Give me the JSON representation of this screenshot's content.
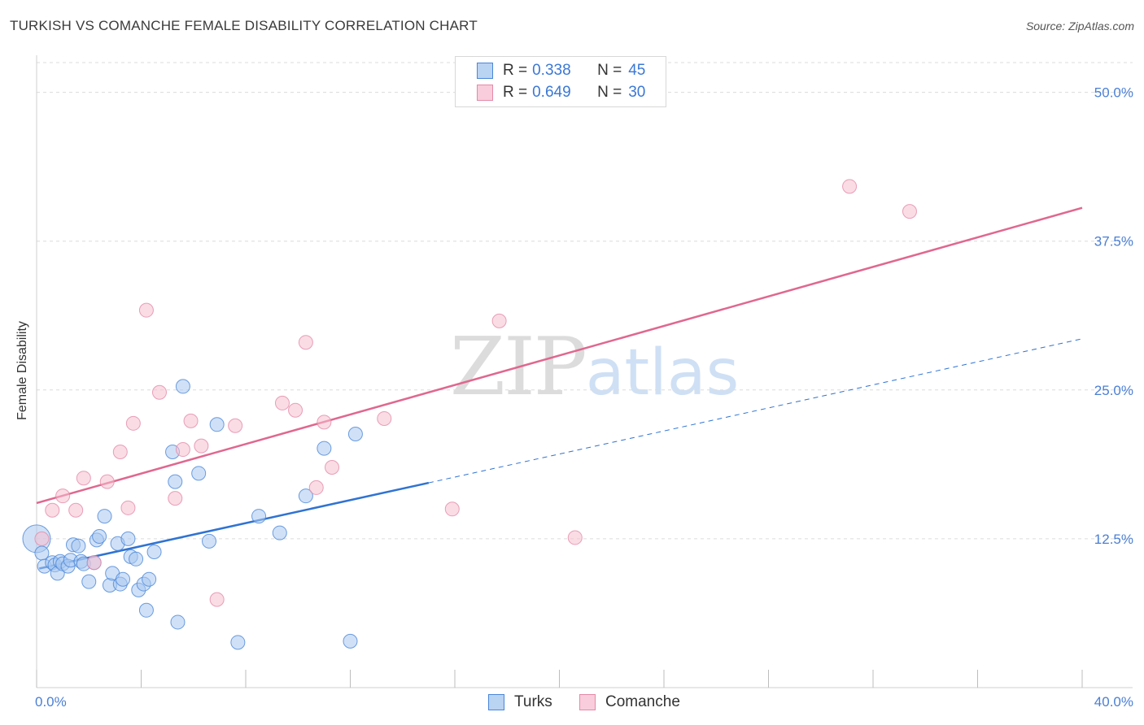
{
  "header": {
    "title": "TURKISH VS COMANCHE FEMALE DISABILITY CORRELATION CHART",
    "source": "Source: ZipAtlas.com"
  },
  "watermark": {
    "zip": "ZIP",
    "atlas": "atlas"
  },
  "legend": {
    "turks": {
      "r_label": "R =",
      "r_value": "0.338",
      "n_label": "N =",
      "n_value": "45"
    },
    "comanche": {
      "r_label": "R =",
      "r_value": "0.649",
      "n_label": "N =",
      "n_value": "30"
    }
  },
  "bottom_legend": {
    "turks": "Turks",
    "comanche": "Comanche"
  },
  "colors": {
    "turks_fill": "#a9c8f0",
    "turks_stroke": "#4a86d8",
    "turks_line": "#2f73d2",
    "comanche_fill": "#f6bfd0",
    "comanche_stroke": "#e48aa8",
    "comanche_line": "#e0678f",
    "grid": "#dcdcdc",
    "axis_text": "#4a7fd4"
  },
  "chart_data": {
    "type": "scatter",
    "title": "TURKISH VS COMANCHE FEMALE DISABILITY CORRELATION CHART",
    "xlabel": "",
    "ylabel": "Female Disability",
    "xlim": [
      0,
      40
    ],
    "ylim": [
      0,
      52.5
    ],
    "x_tick_labels": [
      "0.0%",
      "40.0%"
    ],
    "y_ticks": [
      12.5,
      25.0,
      37.5,
      50.0
    ],
    "y_tick_labels": [
      "12.5%",
      "25.0%",
      "37.5%",
      "50.0%"
    ],
    "grid": true,
    "legend_position": "top-center",
    "series": [
      {
        "name": "Turks",
        "R": 0.338,
        "N": 45,
        "trend": {
          "x0": 0.1,
          "y0": 10.0,
          "x1": 15.0,
          "y1": 17.2,
          "dashed_to_x": 40.0,
          "dashed_to_y": 29.3
        },
        "points": [
          {
            "x": 0.0,
            "y": 12.5,
            "big": true
          },
          {
            "x": 0.2,
            "y": 11.3
          },
          {
            "x": 0.3,
            "y": 10.2
          },
          {
            "x": 0.6,
            "y": 10.5
          },
          {
            "x": 0.7,
            "y": 10.3
          },
          {
            "x": 0.8,
            "y": 9.6
          },
          {
            "x": 0.9,
            "y": 10.6
          },
          {
            "x": 1.0,
            "y": 10.4
          },
          {
            "x": 1.2,
            "y": 10.2
          },
          {
            "x": 1.3,
            "y": 10.7
          },
          {
            "x": 1.4,
            "y": 12.0
          },
          {
            "x": 1.6,
            "y": 11.9
          },
          {
            "x": 1.7,
            "y": 10.6
          },
          {
            "x": 1.8,
            "y": 10.4
          },
          {
            "x": 2.0,
            "y": 8.9
          },
          {
            "x": 2.2,
            "y": 10.5
          },
          {
            "x": 2.3,
            "y": 12.4
          },
          {
            "x": 2.4,
            "y": 12.7
          },
          {
            "x": 2.6,
            "y": 14.4
          },
          {
            "x": 2.8,
            "y": 8.6
          },
          {
            "x": 2.9,
            "y": 9.6
          },
          {
            "x": 3.1,
            "y": 12.1
          },
          {
            "x": 3.2,
            "y": 8.7
          },
          {
            "x": 3.3,
            "y": 9.1
          },
          {
            "x": 3.5,
            "y": 12.5
          },
          {
            "x": 3.6,
            "y": 11.0
          },
          {
            "x": 3.8,
            "y": 10.8
          },
          {
            "x": 3.9,
            "y": 8.2
          },
          {
            "x": 4.1,
            "y": 8.7
          },
          {
            "x": 4.2,
            "y": 6.5
          },
          {
            "x": 4.3,
            "y": 9.1
          },
          {
            "x": 4.5,
            "y": 11.4
          },
          {
            "x": 5.2,
            "y": 19.8
          },
          {
            "x": 5.3,
            "y": 17.3
          },
          {
            "x": 5.4,
            "y": 5.5
          },
          {
            "x": 5.6,
            "y": 25.3
          },
          {
            "x": 6.2,
            "y": 18.0
          },
          {
            "x": 6.6,
            "y": 12.3
          },
          {
            "x": 6.9,
            "y": 22.1
          },
          {
            "x": 7.7,
            "y": 3.8
          },
          {
            "x": 8.5,
            "y": 14.4
          },
          {
            "x": 9.3,
            "y": 13.0
          },
          {
            "x": 10.3,
            "y": 16.1
          },
          {
            "x": 11.0,
            "y": 20.1
          },
          {
            "x": 12.0,
            "y": 3.9
          },
          {
            "x": 12.2,
            "y": 21.3
          }
        ]
      },
      {
        "name": "Comanche",
        "R": 0.649,
        "N": 30,
        "trend": {
          "x0": 0.0,
          "y0": 15.5,
          "x1": 40.0,
          "y1": 40.3
        },
        "points": [
          {
            "x": 0.2,
            "y": 12.5
          },
          {
            "x": 0.6,
            "y": 14.9
          },
          {
            "x": 1.0,
            "y": 16.1
          },
          {
            "x": 1.5,
            "y": 14.9
          },
          {
            "x": 1.8,
            "y": 17.6
          },
          {
            "x": 2.2,
            "y": 10.5
          },
          {
            "x": 2.7,
            "y": 17.3
          },
          {
            "x": 3.2,
            "y": 19.8
          },
          {
            "x": 3.5,
            "y": 15.1
          },
          {
            "x": 3.7,
            "y": 22.2
          },
          {
            "x": 4.2,
            "y": 31.7
          },
          {
            "x": 4.7,
            "y": 24.8
          },
          {
            "x": 5.3,
            "y": 15.9
          },
          {
            "x": 5.6,
            "y": 20.0
          },
          {
            "x": 5.9,
            "y": 22.4
          },
          {
            "x": 6.3,
            "y": 20.3
          },
          {
            "x": 6.9,
            "y": 7.4
          },
          {
            "x": 7.6,
            "y": 22.0
          },
          {
            "x": 9.4,
            "y": 23.9
          },
          {
            "x": 9.9,
            "y": 23.3
          },
          {
            "x": 10.3,
            "y": 29.0
          },
          {
            "x": 10.7,
            "y": 16.8
          },
          {
            "x": 11.0,
            "y": 22.3
          },
          {
            "x": 11.3,
            "y": 18.5
          },
          {
            "x": 13.3,
            "y": 22.6
          },
          {
            "x": 15.9,
            "y": 15.0
          },
          {
            "x": 17.7,
            "y": 30.8
          },
          {
            "x": 20.6,
            "y": 12.6
          },
          {
            "x": 31.1,
            "y": 42.1
          },
          {
            "x": 33.4,
            "y": 40.0
          }
        ]
      }
    ]
  }
}
